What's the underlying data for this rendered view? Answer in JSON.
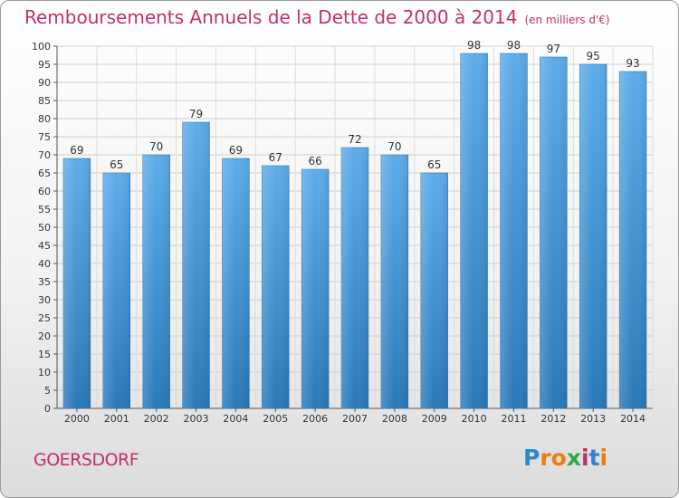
{
  "chart_data": {
    "type": "bar",
    "title": "Remboursements Annuels de la Dette de 2000 à 2014",
    "unit_label": "(en milliers d'€)",
    "categories": [
      "2000",
      "2001",
      "2002",
      "2003",
      "2004",
      "2005",
      "2006",
      "2007",
      "2008",
      "2009",
      "2010",
      "2011",
      "2012",
      "2013",
      "2014"
    ],
    "values": [
      69,
      65,
      70,
      79,
      69,
      67,
      66,
      72,
      70,
      65,
      98,
      98,
      97,
      95,
      93
    ],
    "ylim": [
      0,
      100
    ],
    "ytick_step": 5,
    "grid": true,
    "xlabel": "",
    "ylabel": "",
    "bar_color_top": "#5dacea",
    "bar_color_bottom": "#2a79b8"
  },
  "footer": {
    "commune": "GOERSDORF",
    "logo": "Proxiti"
  },
  "colors": {
    "accent": "#c0306e"
  }
}
